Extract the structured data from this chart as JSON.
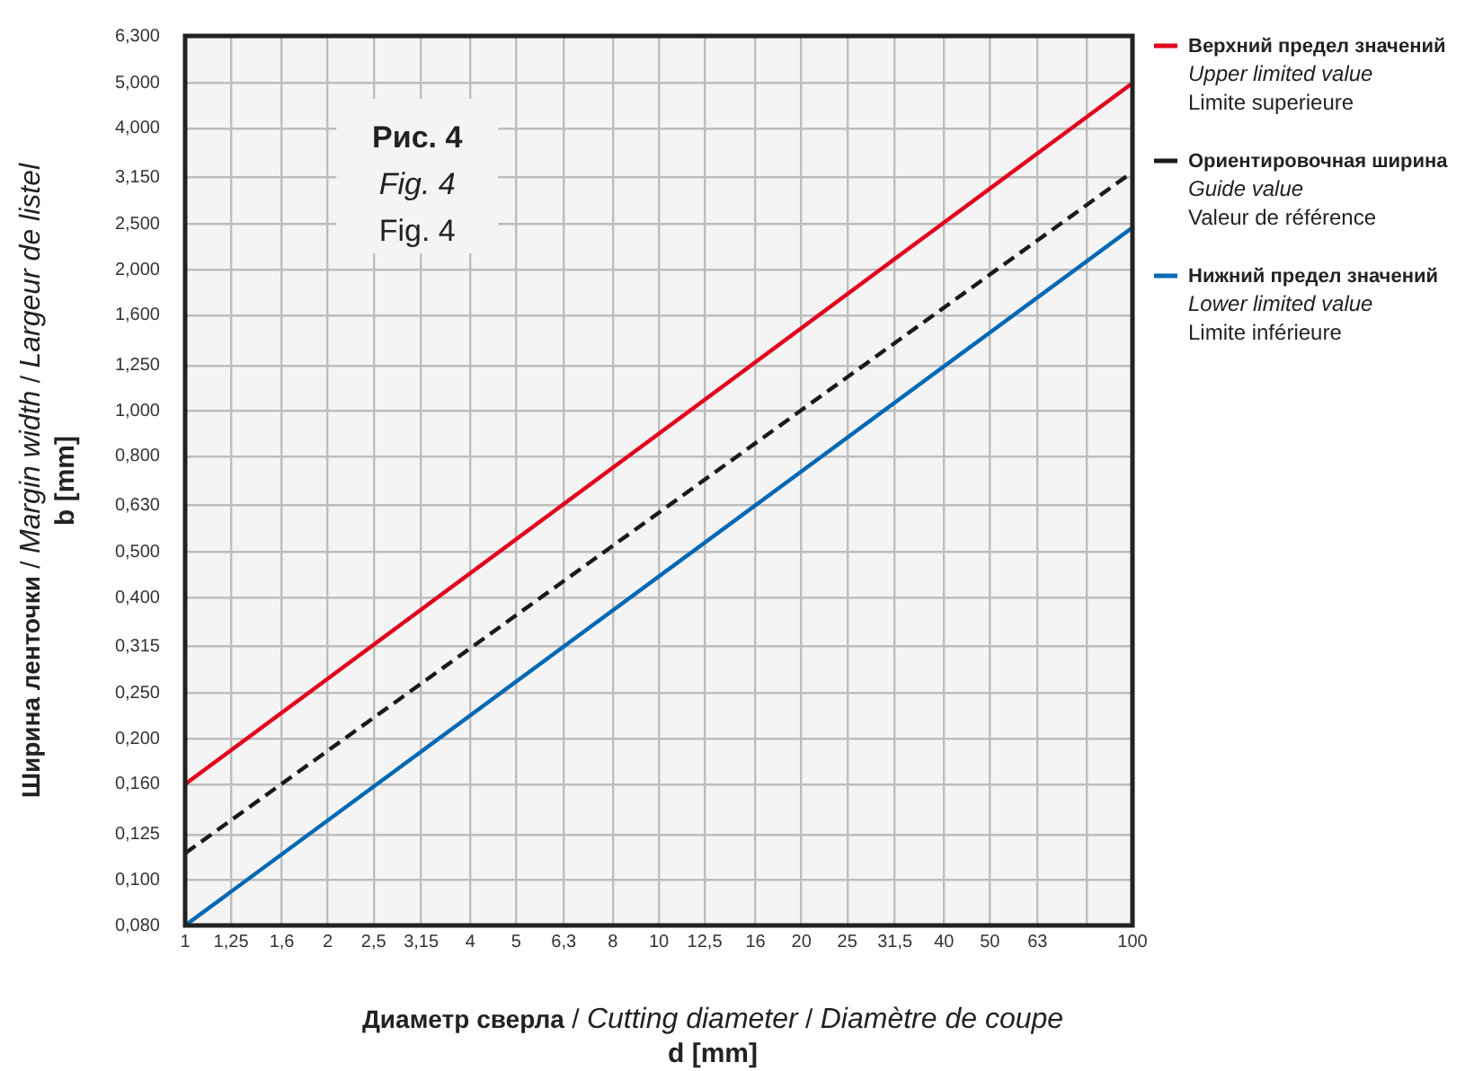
{
  "chart_data": {
    "type": "line",
    "title": "Рис. 4\nFig. 4\nFig. 4",
    "xlabel": "Диаметр сверла / Cutting diameter / Diamètre de coupe\nd [mm]",
    "ylabel": "Ширина ленточки / Margin width / Largeur de listel\nb [mm]",
    "x": [
      1,
      100
    ],
    "series": [
      {
        "name": "Верхний предел значений\nUpper limited value\nLimite superieure",
        "color": "#e3001b",
        "values": [
          0.16,
          5.0
        ]
      },
      {
        "name": "Ориентировочная ширина\nGuide value\nValeur de référence",
        "color": "#1a1a1a",
        "values": [
          0.114,
          3.23
        ],
        "line_style": "dashed"
      },
      {
        "name": "Нижний предел значений\nLower limited value\nLimite inférieure",
        "color": "#0068b4",
        "values": [
          0.08,
          2.46
        ]
      }
    ],
    "log": "xy",
    "xlim": [
      1,
      100
    ],
    "ylim": [
      0.08,
      6.3
    ],
    "xticks": [
      1,
      {
        "value": 1.25,
        "label": "1,25"
      },
      {
        "value": 1.6,
        "label": "1,6"
      },
      2,
      {
        "value": 2.5,
        "label": "2,5"
      },
      {
        "value": 3.15,
        "label": "3,15"
      },
      4,
      5,
      {
        "value": 6.3,
        "label": "6,3"
      },
      8,
      10,
      {
        "value": 12.5,
        "label": "12,5"
      },
      16,
      20,
      25,
      {
        "value": 31.5,
        "label": "31,5"
      },
      40,
      50,
      63,
      {
        "value": 80,
        "label": null
      },
      100
    ],
    "yticks": [
      {
        "value": 0.08,
        "label": "0,080"
      },
      {
        "value": 0.1,
        "label": "0,100"
      },
      {
        "value": 0.125,
        "label": "0,125"
      },
      {
        "value": 0.16,
        "label": "0,160"
      },
      {
        "value": 0.2,
        "label": "0,200"
      },
      {
        "value": 0.25,
        "label": "0,250"
      },
      {
        "value": 0.315,
        "label": "0,315"
      },
      {
        "value": 0.4,
        "label": "0,400"
      },
      {
        "value": 0.5,
        "label": "0,500"
      },
      {
        "value": 0.63,
        "label": "0,630"
      },
      {
        "value": 0.8,
        "label": "0,800"
      },
      {
        "value": 1.0,
        "label": "1,000"
      },
      {
        "value": 1.25,
        "label": "1,250"
      },
      {
        "value": 1.6,
        "label": "1,600"
      },
      {
        "value": 2.0,
        "label": "2,000"
      },
      {
        "value": 2.5,
        "label": "2,500"
      },
      {
        "value": 3.15,
        "label": "3,150"
      },
      {
        "value": 4.0,
        "label": "4,000"
      },
      {
        "value": 5.0,
        "label": "5,000"
      },
      {
        "value": 6.3,
        "label": "6,300"
      }
    ],
    "grid": true,
    "legend": "right",
    "marker": "none"
  }
}
